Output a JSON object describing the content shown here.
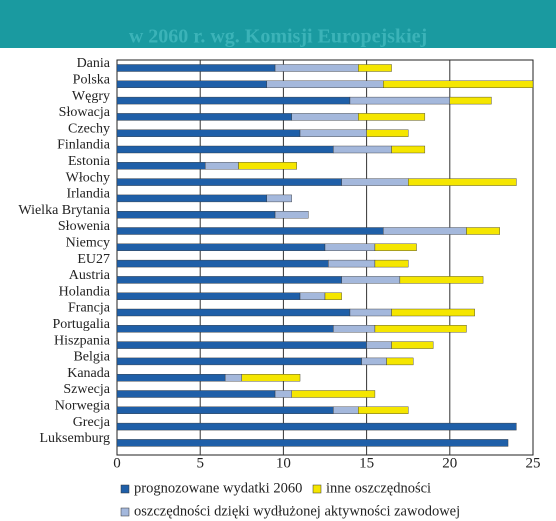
{
  "chart_data": {
    "type": "stacked-hbar",
    "subtitle": "w 2060 r. wg. Komisji Europejskiej",
    "categories": [
      "Dania",
      "Polska",
      "Węgry",
      "Słowacja",
      "Czechy",
      "Finlandia",
      "Estonia",
      "Włochy",
      "Irlandia",
      "Wielka Brytania",
      "Słowenia",
      "Niemcy",
      "EU27",
      "Austria",
      "Holandia",
      "Francja",
      "Portugalia",
      "Hiszpania",
      "Belgia",
      "Kanada",
      "Szwecja",
      "Norwegia",
      "Grecja",
      "Luksemburg"
    ],
    "series": [
      {
        "name": "prognozowane wydatki 2060",
        "color": "#1f5fa8",
        "values": [
          9.5,
          9.0,
          14.0,
          10.5,
          11.0,
          13.0,
          5.3,
          13.5,
          9.0,
          9.5,
          16.0,
          12.5,
          12.7,
          13.5,
          11.0,
          14.0,
          13.0,
          15.0,
          14.7,
          6.5,
          9.5,
          13.0,
          24.0,
          23.5
        ]
      },
      {
        "name": "oszczędności dzięki wydłużonej aktywności zawodowej",
        "color": "#a4b8dc",
        "values": [
          5.0,
          7.0,
          6.0,
          4.0,
          4.0,
          3.5,
          2.0,
          4.0,
          1.5,
          2.0,
          5.0,
          3.0,
          2.8,
          3.5,
          1.5,
          2.5,
          2.5,
          1.5,
          1.5,
          1.0,
          1.0,
          1.5,
          null,
          null
        ]
      },
      {
        "name": "inne oszczędności",
        "color": "#f5e600",
        "values": [
          2.0,
          9.0,
          2.5,
          4.0,
          2.5,
          2.0,
          3.5,
          6.5,
          null,
          null,
          2.0,
          2.5,
          2.0,
          5.0,
          1.0,
          5.0,
          5.5,
          2.5,
          1.6,
          3.5,
          5.0,
          3.0,
          null,
          null
        ]
      }
    ],
    "xlim": [
      0,
      25
    ],
    "xticks": [
      0,
      5,
      10,
      15,
      20,
      25
    ],
    "grid": true
  }
}
